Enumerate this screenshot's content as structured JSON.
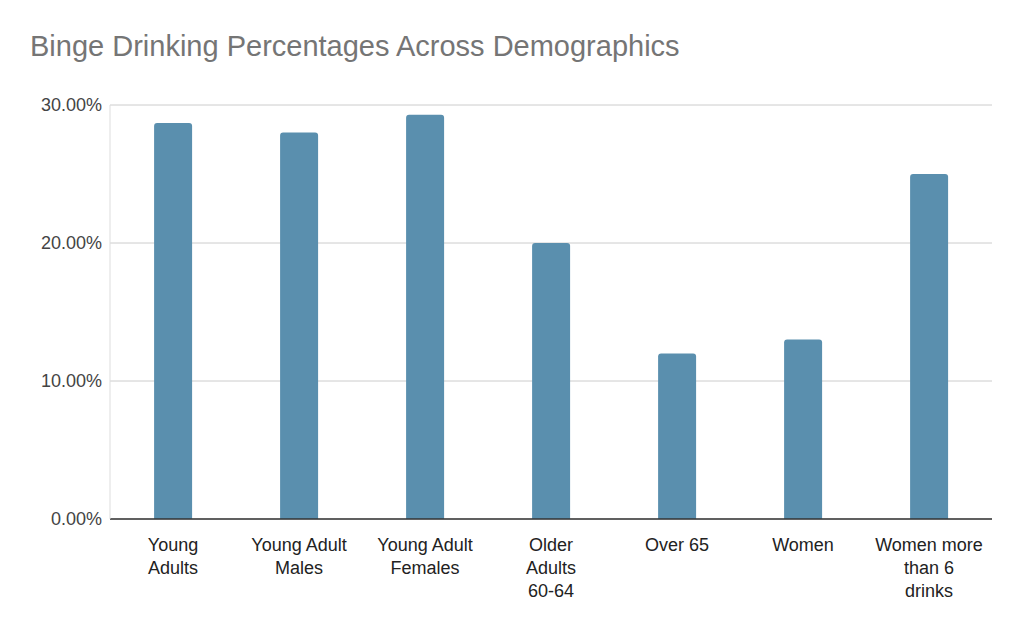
{
  "chart_data": {
    "type": "bar",
    "title": "Binge Drinking Percentages Across Demographics",
    "categories": [
      "Young Adults",
      "Young Adult Males",
      "Young Adult Females",
      "Older Adults 60-64",
      "Over 65",
      "Women",
      "Women more than 6 drinks"
    ],
    "values": [
      28.7,
      28,
      29.3,
      20,
      12,
      13,
      25
    ],
    "color": "#5a8fae",
    "ylim": [
      0,
      30
    ],
    "yticks": [
      {
        "value": 0,
        "label": "0.00%"
      },
      {
        "value": 10,
        "label": "10.00%"
      },
      {
        "value": 20,
        "label": "20.00%"
      },
      {
        "value": 30,
        "label": "30.00%"
      }
    ],
    "grid": true
  }
}
